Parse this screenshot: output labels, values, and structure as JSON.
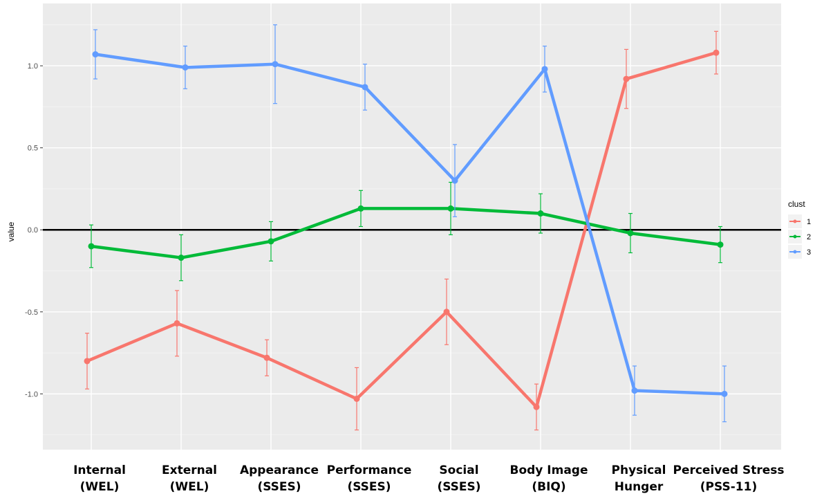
{
  "chart_data": {
    "type": "line",
    "ylabel": "value",
    "ylim": [
      -1.34,
      1.38
    ],
    "yticks": [
      -1.0,
      -0.5,
      0.0,
      0.5,
      1.0
    ],
    "ytick_labels": [
      "-1.0",
      "-0.5",
      "0.0",
      "0.5",
      "1.0"
    ],
    "categories": [
      [
        "Internal",
        "(WEL)"
      ],
      [
        "External",
        "(WEL)"
      ],
      [
        "Appearance",
        "(SSES)"
      ],
      [
        "Performance",
        "(SSES)"
      ],
      [
        "Social",
        "(SSES)"
      ],
      [
        "Body Image",
        "(BIQ)"
      ],
      [
        "Physical",
        "Hunger"
      ],
      [
        "Perceived Stress",
        "(PSS-11)"
      ]
    ],
    "reference_line_y": 0,
    "grid": true,
    "legend": {
      "title": "clust",
      "position": "right"
    },
    "series": [
      {
        "name": "1",
        "color": "#f8766d",
        "values": [
          -0.8,
          -0.57,
          -0.78,
          -1.03,
          -0.5,
          -1.08,
          0.92,
          1.08
        ],
        "err": [
          0.17,
          0.2,
          0.11,
          0.19,
          0.2,
          0.14,
          0.18,
          0.13
        ]
      },
      {
        "name": "2",
        "color": "#00ba38",
        "values": [
          -0.1,
          -0.17,
          -0.07,
          0.13,
          0.13,
          0.1,
          -0.02,
          -0.09
        ],
        "err": [
          0.13,
          0.14,
          0.12,
          0.11,
          0.16,
          0.12,
          0.12,
          0.11
        ]
      },
      {
        "name": "3",
        "color": "#619cff",
        "values": [
          1.07,
          0.99,
          1.01,
          0.87,
          0.3,
          0.98,
          -0.98,
          -1.0
        ],
        "err": [
          0.15,
          0.13,
          0.24,
          0.14,
          0.22,
          0.14,
          0.15,
          0.17
        ]
      }
    ]
  }
}
